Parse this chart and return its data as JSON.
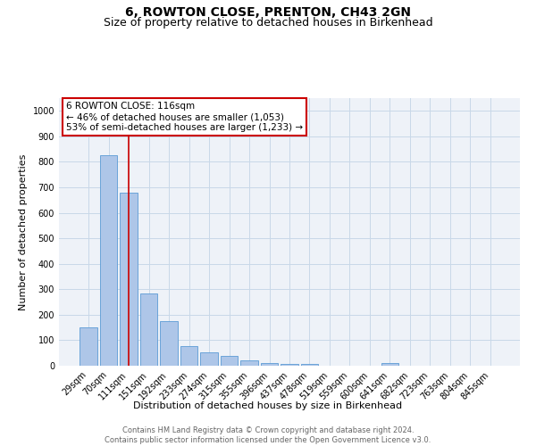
{
  "title": "6, ROWTON CLOSE, PRENTON, CH43 2GN",
  "subtitle": "Size of property relative to detached houses in Birkenhead",
  "xlabel": "Distribution of detached houses by size in Birkenhead",
  "ylabel": "Number of detached properties",
  "categories": [
    "29sqm",
    "70sqm",
    "111sqm",
    "151sqm",
    "192sqm",
    "233sqm",
    "274sqm",
    "315sqm",
    "355sqm",
    "396sqm",
    "437sqm",
    "478sqm",
    "519sqm",
    "559sqm",
    "600sqm",
    "641sqm",
    "682sqm",
    "723sqm",
    "763sqm",
    "804sqm",
    "845sqm"
  ],
  "values": [
    152,
    825,
    680,
    285,
    175,
    78,
    52,
    40,
    22,
    12,
    8,
    7,
    0,
    0,
    0,
    10,
    0,
    0,
    0,
    0,
    0
  ],
  "bar_color": "#aec6e8",
  "bar_edge_color": "#5b9bd5",
  "grid_color": "#c8d8e8",
  "background_color": "#eef2f8",
  "property_line_x": 2.0,
  "annotation_text": "6 ROWTON CLOSE: 116sqm\n← 46% of detached houses are smaller (1,053)\n53% of semi-detached houses are larger (1,233) →",
  "annotation_box_color": "#ffffff",
  "annotation_box_edge_color": "#cc0000",
  "ylim": [
    0,
    1050
  ],
  "yticks": [
    0,
    100,
    200,
    300,
    400,
    500,
    600,
    700,
    800,
    900,
    1000
  ],
  "footer_text": "Contains HM Land Registry data © Crown copyright and database right 2024.\nContains public sector information licensed under the Open Government Licence v3.0.",
  "title_fontsize": 10,
  "subtitle_fontsize": 9,
  "tick_fontsize": 7,
  "ylabel_fontsize": 8,
  "xlabel_fontsize": 8,
  "footer_fontsize": 6,
  "annotation_fontsize": 7.5
}
